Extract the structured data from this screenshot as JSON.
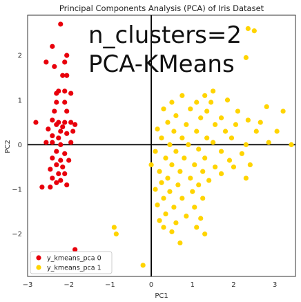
{
  "chart_data": {
    "type": "scatter",
    "title": "Principal Components Analysis (PCA) of Iris Dataset",
    "xlabel": "PC1",
    "ylabel": "PC2",
    "xlim": [
      -3.0,
      3.5
    ],
    "ylim": [
      -2.95,
      2.9
    ],
    "xticks": [
      -3,
      -2,
      -1,
      0,
      1,
      2,
      3
    ],
    "yticks": [
      -2,
      -1,
      0,
      1,
      2
    ],
    "zero_lines": true,
    "grid": false,
    "legend_position": "bottom-left",
    "annotations": [
      "n_clusters=2",
      "PCA-KMeans"
    ],
    "series": [
      {
        "name": "y_kmeans_pca 0",
        "color": "#e8000b",
        "points": [
          [
            -2.2,
            2.7
          ],
          [
            -2.4,
            2.2
          ],
          [
            -2.05,
            2.0
          ],
          [
            -2.55,
            1.85
          ],
          [
            -2.35,
            1.75
          ],
          [
            -2.1,
            1.85
          ],
          [
            -2.15,
            1.55
          ],
          [
            -2.05,
            1.55
          ],
          [
            -2.3,
            1.15
          ],
          [
            -2.25,
            1.2
          ],
          [
            -2.1,
            1.2
          ],
          [
            -1.95,
            1.15
          ],
          [
            -2.3,
            0.95
          ],
          [
            -2.1,
            0.95
          ],
          [
            -2.35,
            0.75
          ],
          [
            -2.05,
            0.75
          ],
          [
            -2.4,
            0.55
          ],
          [
            -2.25,
            0.5
          ],
          [
            -2.1,
            0.5
          ],
          [
            -1.95,
            0.5
          ],
          [
            -2.3,
            0.45
          ],
          [
            -2.15,
            0.4
          ],
          [
            -1.85,
            0.45
          ],
          [
            -2.8,
            0.5
          ],
          [
            -2.5,
            0.35
          ],
          [
            -2.2,
            0.3
          ],
          [
            -2.05,
            0.25
          ],
          [
            -1.9,
            0.3
          ],
          [
            -2.4,
            0.2
          ],
          [
            -2.25,
            0.15
          ],
          [
            -2.55,
            0.05
          ],
          [
            -2.4,
            0.05
          ],
          [
            -2.2,
            0.0
          ],
          [
            -1.95,
            0.05
          ],
          [
            -2.3,
            -0.15
          ],
          [
            -2.1,
            -0.2
          ],
          [
            -2.4,
            -0.3
          ],
          [
            -2.2,
            -0.35
          ],
          [
            -2.0,
            -0.35
          ],
          [
            -2.3,
            -0.45
          ],
          [
            -2.15,
            -0.5
          ],
          [
            -2.45,
            -0.55
          ],
          [
            -2.25,
            -0.65
          ],
          [
            -2.1,
            -0.65
          ],
          [
            -2.4,
            -0.75
          ],
          [
            -2.2,
            -0.8
          ],
          [
            -2.3,
            -0.85
          ],
          [
            -2.05,
            -0.9
          ],
          [
            -2.45,
            -0.95
          ],
          [
            -2.65,
            -0.95
          ],
          [
            -1.85,
            -2.35
          ]
        ]
      },
      {
        "name": "y_kmeans_pca 1",
        "color": "#ffd400",
        "points": [
          [
            2.35,
            2.6
          ],
          [
            2.5,
            2.55
          ],
          [
            2.3,
            1.95
          ],
          [
            1.5,
            1.2
          ],
          [
            1.3,
            1.1
          ],
          [
            0.75,
            1.1
          ],
          [
            0.5,
            0.95
          ],
          [
            1.1,
            0.95
          ],
          [
            1.45,
            0.95
          ],
          [
            1.85,
            1.0
          ],
          [
            2.8,
            0.85
          ],
          [
            3.2,
            0.75
          ],
          [
            0.3,
            0.8
          ],
          [
            0.95,
            0.8
          ],
          [
            1.35,
            0.75
          ],
          [
            2.1,
            0.75
          ],
          [
            0.6,
            0.65
          ],
          [
            1.2,
            0.6
          ],
          [
            1.7,
            0.6
          ],
          [
            2.35,
            0.55
          ],
          [
            2.65,
            0.5
          ],
          [
            0.4,
            0.5
          ],
          [
            0.85,
            0.45
          ],
          [
            1.55,
            0.45
          ],
          [
            2.05,
            0.45
          ],
          [
            0.15,
            0.35
          ],
          [
            0.55,
            0.3
          ],
          [
            1.1,
            0.3
          ],
          [
            1.8,
            0.3
          ],
          [
            2.55,
            0.3
          ],
          [
            3.05,
            0.3
          ],
          [
            0.25,
            0.15
          ],
          [
            0.75,
            0.15
          ],
          [
            1.35,
            0.15
          ],
          [
            1.95,
            0.15
          ],
          [
            0.45,
            0.0
          ],
          [
            0.9,
            0.0
          ],
          [
            1.5,
            0.05
          ],
          [
            2.3,
            0.0
          ],
          [
            2.85,
            0.05
          ],
          [
            3.4,
            0.0
          ],
          [
            0.1,
            -0.15
          ],
          [
            0.6,
            -0.15
          ],
          [
            1.15,
            -0.1
          ],
          [
            1.7,
            -0.15
          ],
          [
            2.2,
            -0.2
          ],
          [
            0.35,
            -0.3
          ],
          [
            0.8,
            -0.3
          ],
          [
            1.3,
            -0.3
          ],
          [
            1.9,
            -0.35
          ],
          [
            0.0,
            -0.45
          ],
          [
            0.5,
            -0.45
          ],
          [
            1.05,
            -0.45
          ],
          [
            1.55,
            -0.5
          ],
          [
            2.0,
            -0.5
          ],
          [
            2.4,
            -0.45
          ],
          [
            0.2,
            -0.6
          ],
          [
            0.7,
            -0.6
          ],
          [
            1.25,
            -0.6
          ],
          [
            1.7,
            -0.65
          ],
          [
            0.4,
            -0.75
          ],
          [
            0.95,
            -0.75
          ],
          [
            1.4,
            -0.8
          ],
          [
            2.3,
            -0.75
          ],
          [
            0.25,
            -0.85
          ],
          [
            0.65,
            -0.9
          ],
          [
            1.15,
            -0.9
          ],
          [
            0.1,
            -1.0
          ],
          [
            0.45,
            -1.05
          ],
          [
            1.0,
            -1.05
          ],
          [
            0.3,
            -1.2
          ],
          [
            0.75,
            -1.2
          ],
          [
            1.25,
            -1.2
          ],
          [
            0.15,
            -1.35
          ],
          [
            0.55,
            -1.4
          ],
          [
            1.05,
            -1.4
          ],
          [
            0.35,
            -1.55
          ],
          [
            0.85,
            -1.6
          ],
          [
            1.2,
            -1.65
          ],
          [
            0.2,
            -1.7
          ],
          [
            0.6,
            -1.75
          ],
          [
            1.1,
            -1.85
          ],
          [
            0.5,
            -1.95
          ],
          [
            1.3,
            -2.0
          ],
          [
            -0.9,
            -1.85
          ],
          [
            -0.85,
            -2.0
          ],
          [
            0.3,
            -1.85
          ],
          [
            0.7,
            -2.2
          ],
          [
            -0.2,
            -2.7
          ]
        ]
      }
    ]
  }
}
